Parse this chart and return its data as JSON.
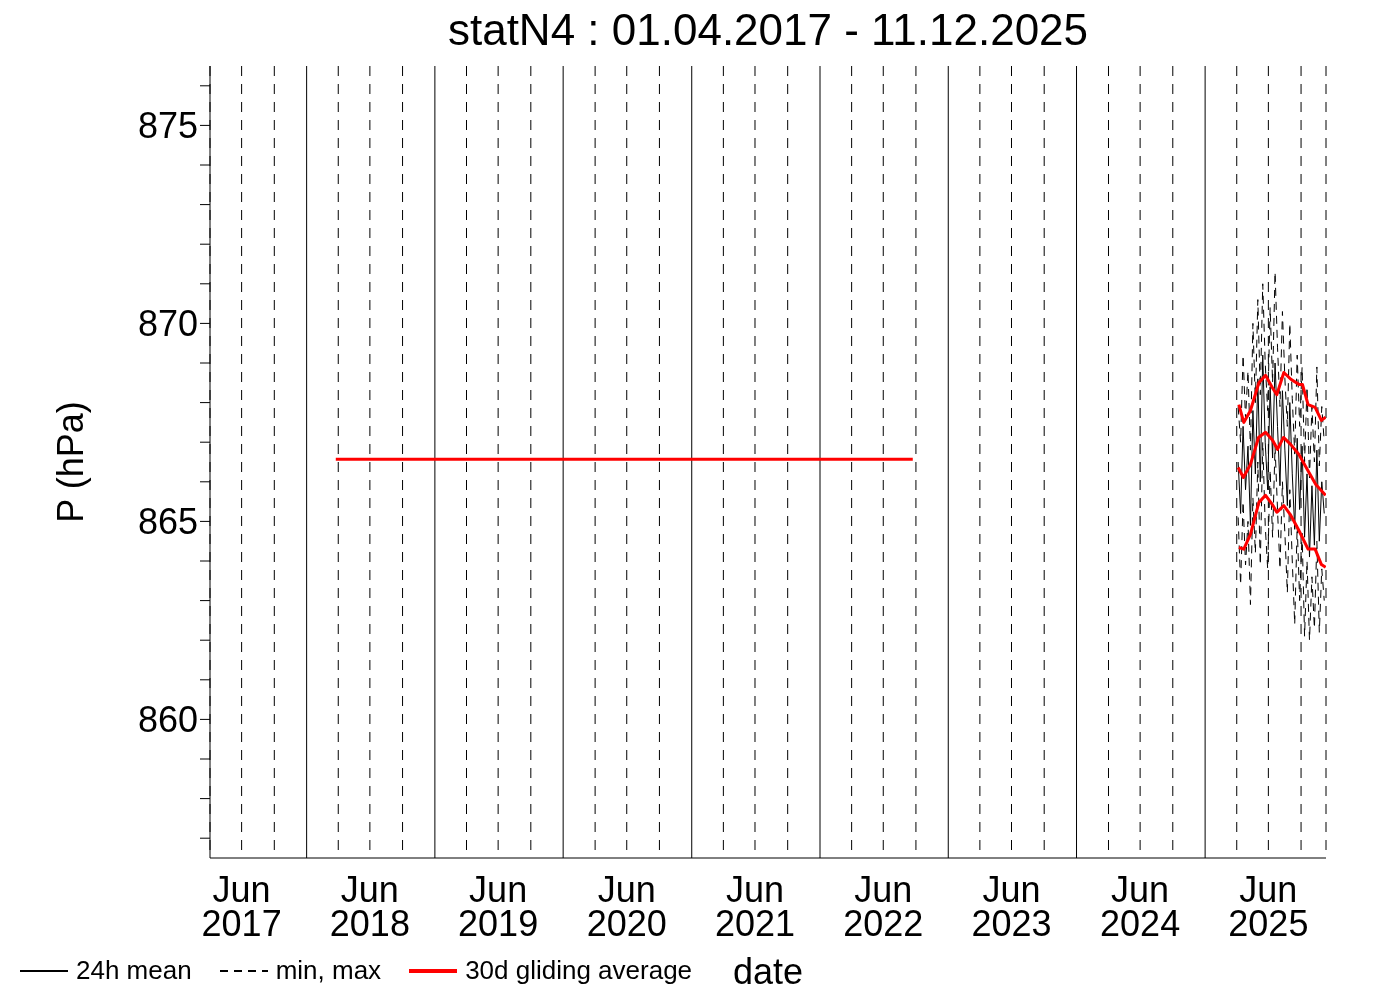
{
  "chart_data": {
    "type": "line",
    "title": "statN4 : 01.04.2017 - 11.12.2025",
    "xlabel": "date",
    "ylabel": "P (hPa)",
    "x": [
      "2025-04-05",
      "2025-04-12",
      "2025-04-19",
      "2025-04-26",
      "2025-05-03",
      "2025-05-10",
      "2025-05-17",
      "2025-05-24",
      "2025-05-31",
      "2025-06-07",
      "2025-06-14",
      "2025-06-21",
      "2025-06-28",
      "2025-07-05",
      "2025-07-12",
      "2025-07-19",
      "2025-07-26",
      "2025-08-02",
      "2025-08-09",
      "2025-08-16",
      "2025-08-23",
      "2025-08-30",
      "2025-09-06",
      "2025-09-13",
      "2025-09-20",
      "2025-09-27",
      "2025-10-04",
      "2025-10-11",
      "2025-10-18",
      "2025-10-25",
      "2025-11-01",
      "2025-11-08",
      "2025-11-15",
      "2025-11-22",
      "2025-11-29",
      "2025-12-06"
    ],
    "xlim": [
      "2017-04-01",
      "2025-12-11"
    ],
    "xticks": [
      {
        "value": "2017-06-30",
        "label": "Jun\n2017"
      },
      {
        "value": "2017-10-01",
        "label": null
      },
      {
        "value": "2018-01-01",
        "label": null
      },
      {
        "value": "2018-04-01",
        "label": null
      },
      {
        "value": "2018-06-30",
        "label": "Jun\n2018"
      },
      {
        "value": "2018-10-01",
        "label": null
      },
      {
        "value": "2019-01-01",
        "label": null
      },
      {
        "value": "2019-04-01",
        "label": null
      },
      {
        "value": "2019-06-30",
        "label": "Jun\n2019"
      },
      {
        "value": "2019-10-01",
        "label": null
      },
      {
        "value": "2020-01-01",
        "label": null
      },
      {
        "value": "2020-04-01",
        "label": null
      },
      {
        "value": "2020-06-30",
        "label": "Jun\n2020"
      },
      {
        "value": "2020-10-01",
        "label": null
      },
      {
        "value": "2021-01-01",
        "label": null
      },
      {
        "value": "2021-04-01",
        "label": null
      },
      {
        "value": "2021-06-30",
        "label": "Jun\n2021"
      },
      {
        "value": "2021-10-01",
        "label": null
      },
      {
        "value": "2022-01-01",
        "label": null
      },
      {
        "value": "2022-04-01",
        "label": null
      },
      {
        "value": "2022-06-30",
        "label": "Jun\n2022"
      },
      {
        "value": "2022-10-01",
        "label": null
      },
      {
        "value": "2023-01-01",
        "label": null
      },
      {
        "value": "2023-04-01",
        "label": null
      },
      {
        "value": "2023-06-30",
        "label": "Jun\n2023"
      },
      {
        "value": "2023-10-01",
        "label": null
      },
      {
        "value": "2024-01-01",
        "label": null
      },
      {
        "value": "2024-04-01",
        "label": null
      },
      {
        "value": "2024-06-30",
        "label": "Jun\n2024"
      },
      {
        "value": "2024-10-01",
        "label": null
      },
      {
        "value": "2025-01-01",
        "label": null
      },
      {
        "value": "2025-04-01",
        "label": null
      },
      {
        "value": "2025-06-30",
        "label": "Jun\n2025"
      },
      {
        "value": "2025-10-01",
        "label": null
      }
    ],
    "ylim": [
      856.5,
      876.5
    ],
    "yticks": [
      {
        "value": 857,
        "label": null
      },
      {
        "value": 858,
        "label": null
      },
      {
        "value": 859,
        "label": null
      },
      860,
      {
        "value": 861,
        "label": null
      },
      {
        "value": 862,
        "label": null
      },
      {
        "value": 863,
        "label": null
      },
      {
        "value": 864,
        "label": null
      },
      865,
      {
        "value": 866,
        "label": null
      },
      {
        "value": 867,
        "label": null
      },
      {
        "value": 868,
        "label": null
      },
      {
        "value": 869,
        "label": null
      },
      870,
      {
        "value": 871,
        "label": null
      },
      {
        "value": 872,
        "label": null
      },
      {
        "value": 873,
        "label": null
      },
      {
        "value": 874,
        "label": null
      },
      875,
      {
        "value": 876,
        "label": null
      }
    ],
    "grid": "x",
    "legend": "bottom left",
    "series": [
      {
        "name": "24h mean",
        "color": "#000000",
        "line_style": "solid",
        "values": [
          866.5,
          865.2,
          867.4,
          865.8,
          866.9,
          864.9,
          867.8,
          866.2,
          868.6,
          866.0,
          869.2,
          867.0,
          865.8,
          868.4,
          866.6,
          869.0,
          867.4,
          865.9,
          868.3,
          866.8,
          865.4,
          868.0,
          866.2,
          864.8,
          867.1,
          865.3,
          866.9,
          864.6,
          866.2,
          864.1,
          865.9,
          864.4,
          866.8,
          864.5,
          866.0,
          865.2
        ]
      },
      {
        "name": "min, max",
        "color": "#000000",
        "line_style": "dashed",
        "values": [
          867.9,
          867.0,
          869.2,
          867.6,
          868.8,
          866.8,
          870.0,
          868.0,
          870.6,
          868.2,
          871.0,
          869.0,
          867.8,
          870.4,
          868.5,
          871.3,
          869.4,
          867.9,
          870.3,
          868.6,
          867.4,
          870.0,
          868.1,
          866.7,
          869.2,
          867.4,
          868.9,
          866.5,
          868.4,
          866.1,
          867.9,
          866.5,
          868.9,
          866.4,
          867.9,
          867.0
        ]
      },
      {
        "color": "#000000",
        "line_style": "dashed",
        "values": [
          865.1,
          863.4,
          865.5,
          863.9,
          865.0,
          862.9,
          865.6,
          864.2,
          866.5,
          863.9,
          867.0,
          864.9,
          863.8,
          866.3,
          864.6,
          866.9,
          865.3,
          863.8,
          866.0,
          864.7,
          863.2,
          865.8,
          864.0,
          862.4,
          864.9,
          863.0,
          864.7,
          862.1,
          864.0,
          862.0,
          863.6,
          862.3,
          864.5,
          862.2,
          863.8,
          863.0
        ]
      },
      {
        "name": "30d gliding average",
        "color": "#ff0000",
        "line_style": "solid",
        "x": [
          "2018-03-25",
          "2022-09-22",
          "2024-01-01",
          "2025-04-05",
          "2025-04-20",
          "2025-05-10",
          "2025-06-02",
          "2025-06-22",
          "2025-07-12",
          "2025-07-26",
          "2025-08-12",
          "2025-09-02",
          "2025-09-25",
          "2025-10-20",
          "2025-11-12",
          "2025-12-10"
        ],
        "values": [
          866.57,
          866.57,
          null,
          866.36,
          866.11,
          866.44,
          867.12,
          867.25,
          867.05,
          866.82,
          867.12,
          866.94,
          866.69,
          866.29,
          865.93,
          865.66
        ]
      },
      {
        "color": "#ff0000",
        "line_style": "solid",
        "x": [
          "2025-04-07",
          "2025-04-21",
          "2025-05-10",
          "2025-06-03",
          "2025-06-22",
          "2025-07-11",
          "2025-07-24",
          "2025-08-13",
          "2025-09-02",
          "2025-09-25",
          "2025-10-05",
          "2025-10-21",
          "2025-11-10",
          "2025-11-28",
          "2025-12-10"
        ],
        "values": [
          867.95,
          867.5,
          867.8,
          868.5,
          868.69,
          868.38,
          868.2,
          868.76,
          868.59,
          868.46,
          868.46,
          867.95,
          867.88,
          867.55,
          867.63
        ]
      },
      {
        "color": "#ff0000",
        "line_style": "solid",
        "x": [
          "2025-04-07",
          "2025-04-21",
          "2025-05-10",
          "2025-06-03",
          "2025-06-22",
          "2025-07-11",
          "2025-07-24",
          "2025-08-13",
          "2025-09-02",
          "2025-09-25",
          "2025-10-21",
          "2025-11-10",
          "2025-11-28",
          "2025-12-10"
        ],
        "values": [
          864.34,
          864.3,
          864.67,
          865.48,
          865.66,
          865.43,
          865.23,
          865.4,
          865.15,
          864.77,
          864.3,
          864.3,
          863.91,
          863.84
        ]
      }
    ]
  }
}
